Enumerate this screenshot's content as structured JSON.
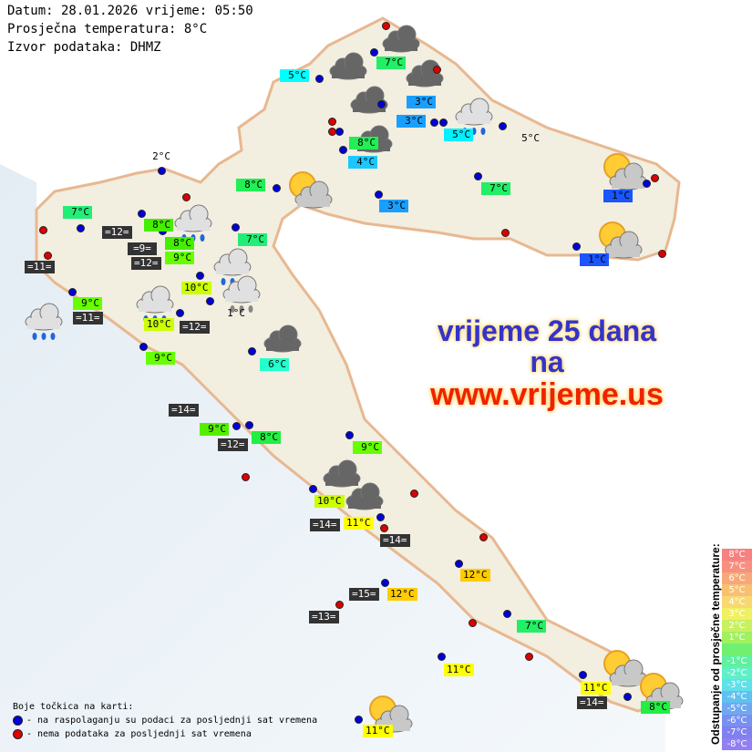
{
  "header": {
    "date_line": "Datum: 28.01.2026 vrijeme: 05:50",
    "avg_temp_line": "Prosječna temperatura: 8°C",
    "source_line": "Izvor podataka: DHMZ"
  },
  "ad": {
    "line1": "vrijeme 25 dana",
    "line2": "na",
    "line3": "www.vrijeme.us",
    "color_blue": "#3333cc",
    "color_red": "#ee2200"
  },
  "stations": [
    {
      "text": "5°C",
      "bg": "#00ffff"
    },
    {
      "text": "7°C",
      "bg": "#22ee66"
    },
    {
      "text": "3°C",
      "bg": "#1a9fff"
    },
    {
      "text": "3°C",
      "bg": "#1a9fff"
    },
    {
      "text": "5°C",
      "bg": "#00f0ff"
    },
    {
      "text": "5°C",
      "bg": "transparent"
    },
    {
      "text": "8°C",
      "bg": "#22ee55"
    },
    {
      "text": "4°C",
      "bg": "#1ac8ff"
    },
    {
      "text": "3°C",
      "bg": "#1a9fff"
    },
    {
      "text": "7°C",
      "bg": "#22ee66"
    },
    {
      "text": "8°C",
      "bg": "#22ee55"
    },
    {
      "text": "1°C",
      "bg": "#1a55ff"
    },
    {
      "text": "1°C",
      "bg": "#1a55ff"
    },
    {
      "text": "2°C",
      "bg": "transparent"
    },
    {
      "text": "7°C",
      "bg": "#22ee77"
    },
    {
      "text": "=12=",
      "bg": "#333333"
    },
    {
      "text": "8°C",
      "bg": "#44ee00"
    },
    {
      "text": "=9=",
      "bg": "#333333"
    },
    {
      "text": "8°C",
      "bg": "#44ee00"
    },
    {
      "text": "=12=",
      "bg": "#333333"
    },
    {
      "text": "9°C",
      "bg": "#66ff00"
    },
    {
      "text": "7°C",
      "bg": "#22ee77"
    },
    {
      "text": "=11=",
      "bg": "#333333"
    },
    {
      "text": "10°C",
      "bg": "#ccff00"
    },
    {
      "text": "1°C",
      "bg": "transparent"
    },
    {
      "text": "9°C",
      "bg": "#66ff00"
    },
    {
      "text": "=11=",
      "bg": "#333333"
    },
    {
      "text": "10°C",
      "bg": "#ccff00"
    },
    {
      "text": "=12=",
      "bg": "#333333"
    },
    {
      "text": "9°C",
      "bg": "#66ff00"
    },
    {
      "text": "6°C",
      "bg": "#22ffcc"
    },
    {
      "text": "=14=",
      "bg": "#333333"
    },
    {
      "text": "9°C",
      "bg": "#55ee00"
    },
    {
      "text": "=12=",
      "bg": "#333333"
    },
    {
      "text": "8°C",
      "bg": "#22ee44"
    },
    {
      "text": "9°C",
      "bg": "#66ff00"
    },
    {
      "text": "10°C",
      "bg": "#ccff00"
    },
    {
      "text": "=14=",
      "bg": "#333333"
    },
    {
      "text": "11°C",
      "bg": "#ffff00"
    },
    {
      "text": "=14=",
      "bg": "#333333"
    },
    {
      "text": "12°C",
      "bg": "#ffcc00"
    },
    {
      "text": "=15=",
      "bg": "#333333"
    },
    {
      "text": "12°C",
      "bg": "#ffcc00"
    },
    {
      "text": "=13=",
      "bg": "#333333"
    },
    {
      "text": "7°C",
      "bg": "#22ee66"
    },
    {
      "text": "11°C",
      "bg": "#ffff00"
    },
    {
      "text": "11°C",
      "bg": "#ffff00"
    },
    {
      "text": "=14=",
      "bg": "#333333"
    },
    {
      "text": "8°C",
      "bg": "#22ee44"
    },
    {
      "text": "11°C",
      "bg": "#ffff00"
    }
  ],
  "dot_colors": {
    "available": "#0000dd",
    "unavailable": "#dd0000"
  },
  "weather_icons": [
    "cloud",
    "cloud",
    "cloud",
    "cloud-rain",
    "cloud",
    "cloud",
    "sun-cloud",
    "sun-cloud",
    "sun-cloud",
    "cloud-rain",
    "cloud-rain",
    "cloud-drizzle",
    "cloud-rain",
    "cloud",
    "cloud-rain",
    "cloud",
    "cloud",
    "sun-cloud",
    "sun-cloud",
    "sun-cloud"
  ],
  "legend": {
    "title": "Boje točkica na karti:",
    "available": "- na raspolaganju su podaci za posljednji sat vremena",
    "unavailable": "- nema podataka za posljednji sat vremena"
  },
  "deviation_scale": {
    "title": "Odstupanje od prosječne temperature:",
    "steps": [
      {
        "label": "8°C",
        "color": "#f88080"
      },
      {
        "label": "7°C",
        "color": "#f89080"
      },
      {
        "label": "6°C",
        "color": "#f8a878"
      },
      {
        "label": "5°C",
        "color": "#f8c070"
      },
      {
        "label": "4°C",
        "color": "#f8d870"
      },
      {
        "label": "3°C",
        "color": "#f0f060"
      },
      {
        "label": "2°C",
        "color": "#c8f060"
      },
      {
        "label": "1°C",
        "color": "#a0f060"
      },
      {
        "label": "",
        "color": "#70f070"
      },
      {
        "label": "-1°C",
        "color": "#60f0a0"
      },
      {
        "label": "-2°C",
        "color": "#60f0c8"
      },
      {
        "label": "-3°C",
        "color": "#60e0e8"
      },
      {
        "label": "-4°C",
        "color": "#60c0f0"
      },
      {
        "label": "-5°C",
        "color": "#70a8f0"
      },
      {
        "label": "-6°C",
        "color": "#7890f0"
      },
      {
        "label": "-7°C",
        "color": "#8080f0"
      },
      {
        "label": "-8°C",
        "color": "#9080f0"
      }
    ]
  }
}
